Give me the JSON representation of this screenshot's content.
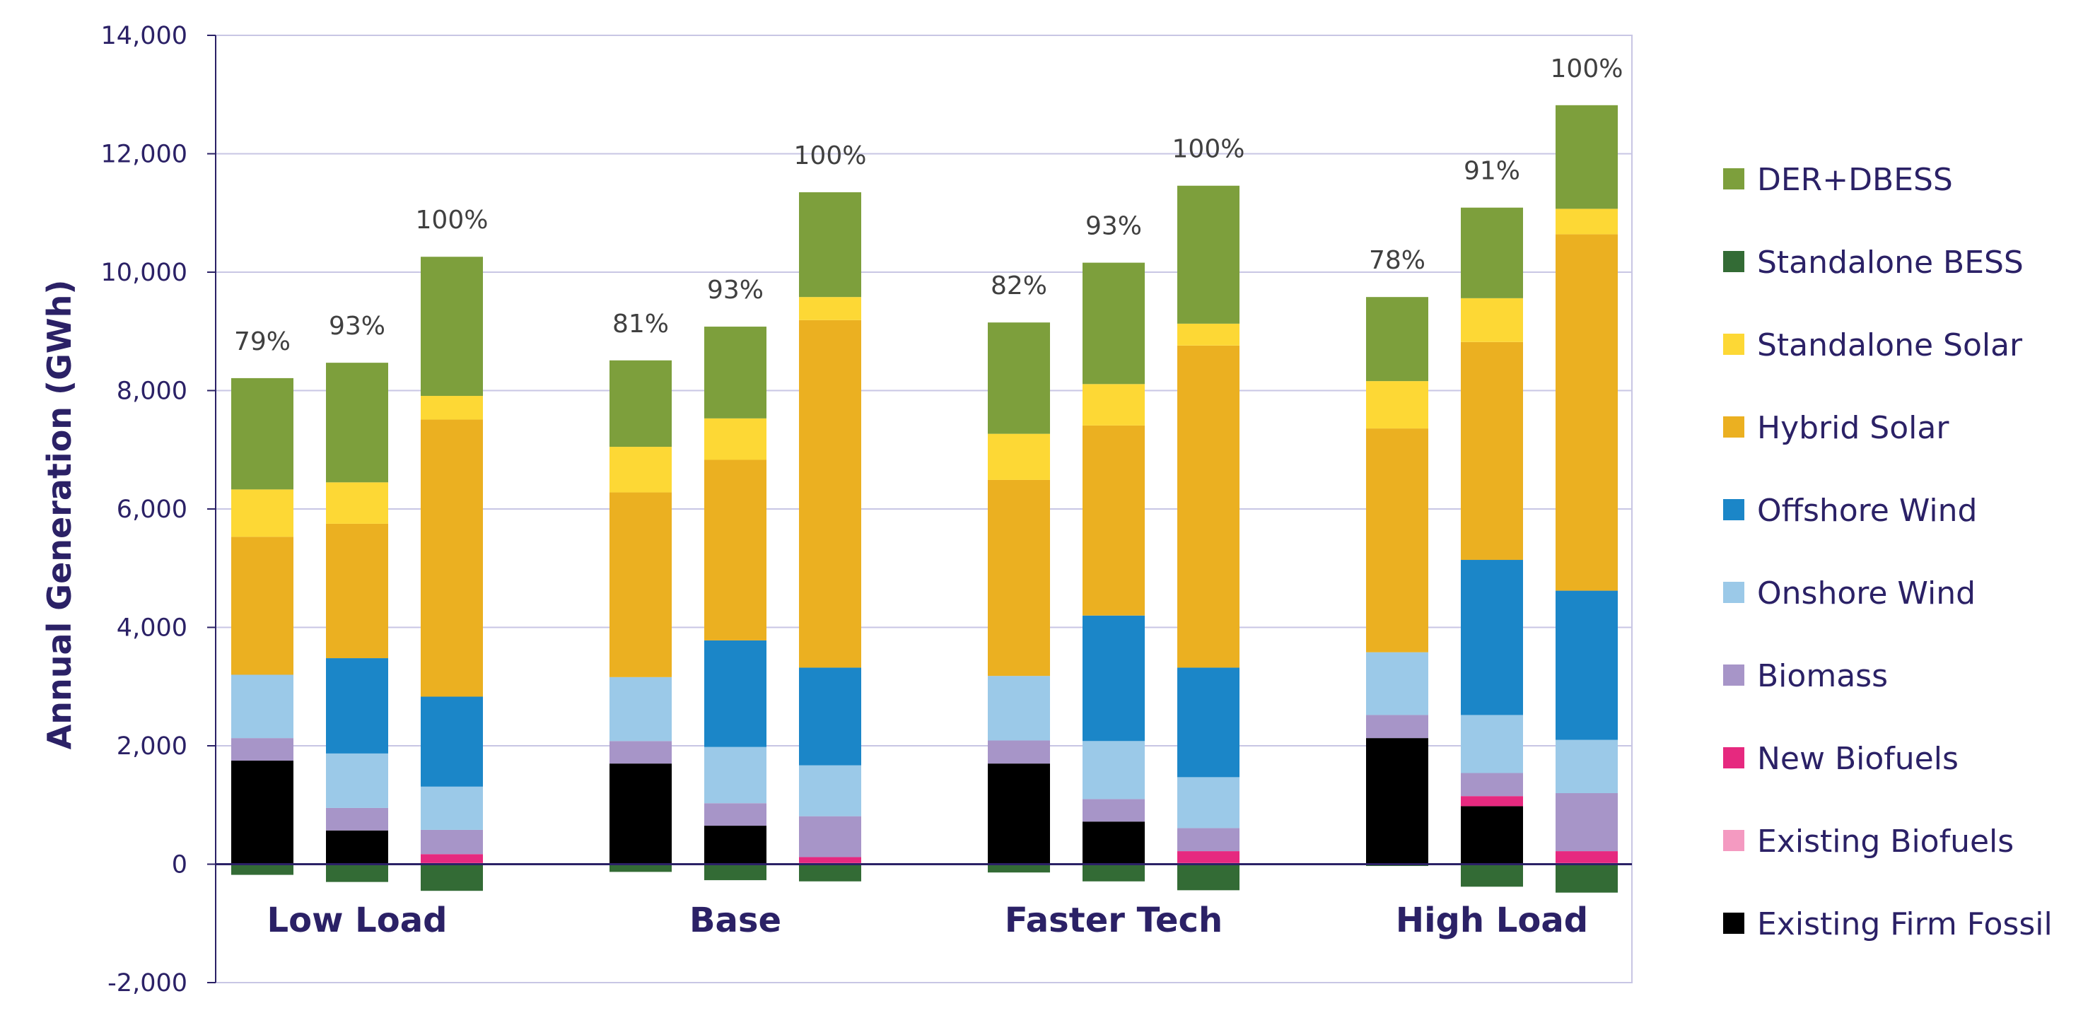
{
  "chart_data": {
    "type": "bar",
    "stacked": true,
    "ylabel": "Annual Generation (GWh)",
    "xlabel": "",
    "ylim": [
      -2000,
      14000
    ],
    "yticks": [
      -2000,
      0,
      2000,
      4000,
      6000,
      8000,
      10000,
      12000,
      14000
    ],
    "ytick_labels": [
      "-2,000",
      "0",
      "2,000",
      "4,000",
      "6,000",
      "8,000",
      "10,000",
      "12,000",
      "14,000"
    ],
    "grid": true,
    "legend_position": "right",
    "groups": [
      "Low Load",
      "Base",
      "Faster Tech",
      "High Load"
    ],
    "bars_per_group": 3,
    "bar_labels": [
      "79%",
      "93%",
      "100%",
      "81%",
      "93%",
      "100%",
      "82%",
      "93%",
      "100%",
      "78%",
      "91%",
      "100%"
    ],
    "series": [
      {
        "name": "Existing Firm Fossil",
        "color": "#000000",
        "values": [
          1750,
          570,
          0,
          1700,
          650,
          0,
          1700,
          720,
          0,
          2130,
          980,
          0
        ]
      },
      {
        "name": "Existing Biofuels",
        "color": "#f49ac1",
        "values": [
          0,
          0,
          20,
          0,
          0,
          20,
          0,
          0,
          20,
          0,
          0,
          20
        ]
      },
      {
        "name": "New Biofuels",
        "color": "#e6297f",
        "values": [
          0,
          0,
          150,
          0,
          0,
          100,
          0,
          0,
          200,
          0,
          170,
          200
        ]
      },
      {
        "name": "Biomass",
        "color": "#a795c8",
        "values": [
          380,
          380,
          410,
          380,
          380,
          690,
          390,
          380,
          390,
          390,
          390,
          980
        ]
      },
      {
        "name": "Onshore Wind",
        "color": "#9bc9e8",
        "values": [
          1070,
          920,
          730,
          1080,
          950,
          860,
          1090,
          980,
          860,
          1060,
          980,
          900
        ]
      },
      {
        "name": "Offshore Wind",
        "color": "#1b86c8",
        "values": [
          0,
          1610,
          1520,
          0,
          1800,
          1650,
          0,
          2120,
          1850,
          0,
          2620,
          2520
        ]
      },
      {
        "name": "Hybrid Solar",
        "color": "#ebb021",
        "values": [
          2330,
          2270,
          4680,
          3120,
          3050,
          5870,
          3310,
          3210,
          5440,
          3780,
          3680,
          6020
        ]
      },
      {
        "name": "Standalone Solar",
        "color": "#fdd835",
        "values": [
          800,
          700,
          400,
          770,
          700,
          390,
          780,
          700,
          370,
          800,
          740,
          430
        ]
      },
      {
        "name": "Standalone BESS",
        "color": "#336b35",
        "values": [
          -180,
          -300,
          -450,
          -130,
          -270,
          -290,
          -140,
          -290,
          -440,
          -30,
          -380,
          -480
        ]
      },
      {
        "name": "DER+DBESS",
        "color": "#7d9f3c",
        "values": [
          1880,
          2020,
          2350,
          1460,
          1550,
          1770,
          1880,
          2050,
          2330,
          1420,
          1530,
          1750
        ]
      }
    ],
    "legend_order": [
      "DER+DBESS",
      "Standalone BESS",
      "Standalone Solar",
      "Hybrid Solar",
      "Offshore Wind",
      "Onshore Wind",
      "Biomass",
      "New Biofuels",
      "Existing Biofuels",
      "Existing Firm Fossil"
    ]
  },
  "colors": {
    "axis_text": "#2b2166",
    "axis_line": "#2b2166",
    "grid": "#c8c6e4",
    "pct_text": "#404040"
  }
}
